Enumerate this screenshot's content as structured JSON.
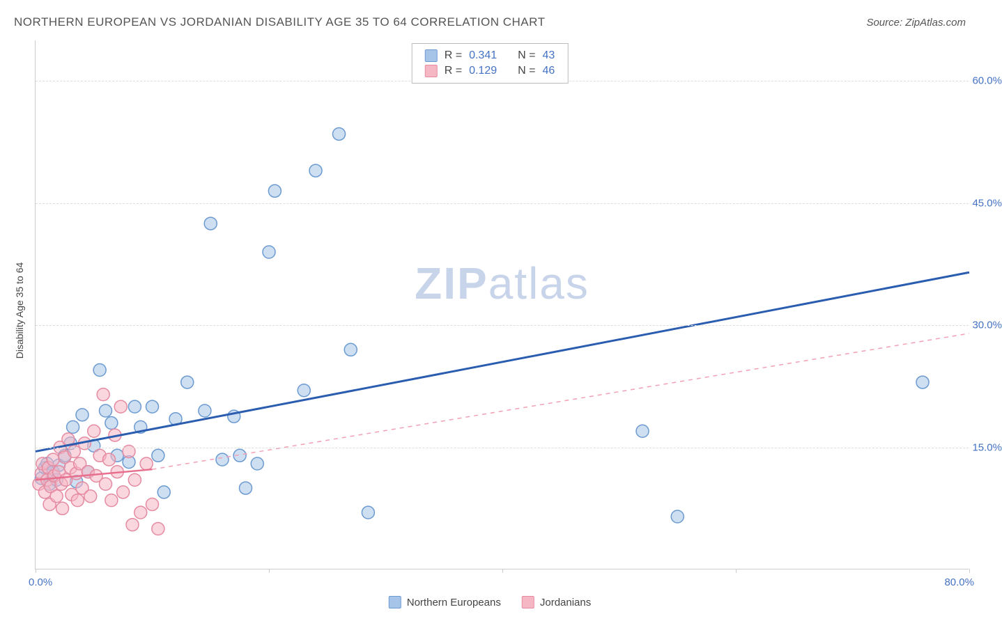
{
  "header": {
    "title": "NORTHERN EUROPEAN VS JORDANIAN DISABILITY AGE 35 TO 64 CORRELATION CHART",
    "source": "Source: ZipAtlas.com"
  },
  "axis": {
    "y_title": "Disability Age 35 to 64",
    "x_start": "0.0%",
    "x_end": "80.0%",
    "y_ticks": [
      {
        "value": 15.0,
        "label": "15.0%"
      },
      {
        "value": 30.0,
        "label": "30.0%"
      },
      {
        "value": 45.0,
        "label": "45.0%"
      },
      {
        "value": 60.0,
        "label": "60.0%"
      }
    ],
    "x_tick_positions": [
      0,
      20,
      40,
      60,
      80
    ]
  },
  "chart": {
    "type": "scatter",
    "xlim": [
      0,
      80
    ],
    "ylim": [
      0,
      65
    ],
    "background_color": "#ffffff",
    "grid_color": "#dddddd",
    "marker_radius": 9,
    "marker_stroke_width": 1.5,
    "series": [
      {
        "name": "Northern Europeans",
        "fill_color": "#a6c4e8",
        "stroke_color": "#6b9ad1",
        "fill_opacity": 0.55,
        "regression": {
          "x1": 0,
          "y1": 14.5,
          "x2": 80,
          "y2": 36.5,
          "color": "#2a5db0",
          "width": 3,
          "dashed": false
        },
        "points": [
          [
            0.5,
            11.2
          ],
          [
            0.8,
            12.5
          ],
          [
            1.0,
            13.0
          ],
          [
            1.2,
            10.5
          ],
          [
            1.5,
            12.0
          ],
          [
            1.8,
            11.0
          ],
          [
            2.0,
            12.8
          ],
          [
            2.5,
            14.0
          ],
          [
            3.0,
            15.5
          ],
          [
            3.2,
            17.5
          ],
          [
            3.5,
            10.8
          ],
          [
            4.0,
            19.0
          ],
          [
            4.5,
            12.0
          ],
          [
            5.0,
            15.2
          ],
          [
            5.5,
            24.5
          ],
          [
            6.0,
            19.5
          ],
          [
            6.5,
            18.0
          ],
          [
            7.0,
            14.0
          ],
          [
            8.0,
            13.2
          ],
          [
            8.5,
            20.0
          ],
          [
            9.0,
            17.5
          ],
          [
            10.0,
            20.0
          ],
          [
            10.5,
            14.0
          ],
          [
            11.0,
            9.5
          ],
          [
            12.0,
            18.5
          ],
          [
            13.0,
            23.0
          ],
          [
            14.5,
            19.5
          ],
          [
            15.0,
            42.5
          ],
          [
            16.0,
            13.5
          ],
          [
            17.0,
            18.8
          ],
          [
            17.5,
            14.0
          ],
          [
            18.0,
            10.0
          ],
          [
            19.0,
            13.0
          ],
          [
            20.0,
            39.0
          ],
          [
            20.5,
            46.5
          ],
          [
            23.0,
            22.0
          ],
          [
            24.0,
            49.0
          ],
          [
            26.0,
            53.5
          ],
          [
            27.0,
            27.0
          ],
          [
            28.5,
            7.0
          ],
          [
            52.0,
            17.0
          ],
          [
            55.0,
            6.5
          ],
          [
            76.0,
            23.0
          ]
        ]
      },
      {
        "name": "Jordanians",
        "fill_color": "#f5b7c4",
        "stroke_color": "#e58aa0",
        "fill_opacity": 0.55,
        "regression": {
          "x1": 0,
          "y1": 11.0,
          "x2": 10,
          "y2": 12.3,
          "color": "#e76f8d",
          "width": 2.5,
          "dashed": false
        },
        "regression_extension": {
          "x1": 10,
          "y1": 12.3,
          "x2": 80,
          "y2": 29.0,
          "color": "#f2a0b4",
          "width": 1.5,
          "dashed": true
        },
        "points": [
          [
            0.3,
            10.5
          ],
          [
            0.5,
            11.8
          ],
          [
            0.6,
            13.0
          ],
          [
            0.8,
            9.5
          ],
          [
            1.0,
            11.0
          ],
          [
            1.1,
            12.5
          ],
          [
            1.2,
            8.0
          ],
          [
            1.3,
            10.2
          ],
          [
            1.5,
            13.5
          ],
          [
            1.6,
            11.5
          ],
          [
            1.8,
            9.0
          ],
          [
            2.0,
            12.0
          ],
          [
            2.1,
            15.0
          ],
          [
            2.2,
            10.5
          ],
          [
            2.3,
            7.5
          ],
          [
            2.5,
            13.8
          ],
          [
            2.6,
            11.0
          ],
          [
            2.8,
            16.0
          ],
          [
            3.0,
            12.5
          ],
          [
            3.1,
            9.2
          ],
          [
            3.3,
            14.5
          ],
          [
            3.5,
            11.8
          ],
          [
            3.6,
            8.5
          ],
          [
            3.8,
            13.0
          ],
          [
            4.0,
            10.0
          ],
          [
            4.2,
            15.5
          ],
          [
            4.5,
            12.0
          ],
          [
            4.7,
            9.0
          ],
          [
            5.0,
            17.0
          ],
          [
            5.2,
            11.5
          ],
          [
            5.5,
            14.0
          ],
          [
            5.8,
            21.5
          ],
          [
            6.0,
            10.5
          ],
          [
            6.3,
            13.5
          ],
          [
            6.5,
            8.5
          ],
          [
            6.8,
            16.5
          ],
          [
            7.0,
            12.0
          ],
          [
            7.3,
            20.0
          ],
          [
            7.5,
            9.5
          ],
          [
            8.0,
            14.5
          ],
          [
            8.3,
            5.5
          ],
          [
            8.5,
            11.0
          ],
          [
            9.0,
            7.0
          ],
          [
            9.5,
            13.0
          ],
          [
            10.0,
            8.0
          ],
          [
            10.5,
            5.0
          ]
        ]
      }
    ]
  },
  "stats": {
    "rows": [
      {
        "swatch_fill": "#a6c4e8",
        "swatch_stroke": "#6b9ad1",
        "r_label": "R =",
        "r_val": "0.341",
        "n_label": "N =",
        "n_val": "43"
      },
      {
        "swatch_fill": "#f5b7c4",
        "swatch_stroke": "#e58aa0",
        "r_label": "R =",
        "r_val": "0.129",
        "n_label": "N =",
        "n_val": "46"
      }
    ]
  },
  "legend": {
    "items": [
      {
        "swatch_fill": "#a6c4e8",
        "swatch_stroke": "#6b9ad1",
        "label": "Northern Europeans"
      },
      {
        "swatch_fill": "#f5b7c4",
        "swatch_stroke": "#e58aa0",
        "label": "Jordanians"
      }
    ]
  },
  "watermark": {
    "zip": "ZIP",
    "atlas": "atlas"
  }
}
